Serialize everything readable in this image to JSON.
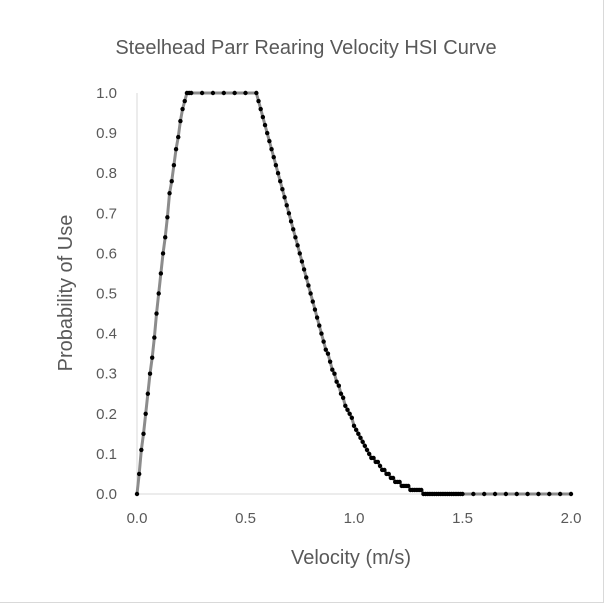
{
  "chart_data": {
    "type": "scatter",
    "title": "Steelhead Parr Rearing Velocity HSI Curve",
    "xlabel": "Velocity (m/s)",
    "ylabel": "Probability of Use",
    "xlim": [
      0.0,
      2.0
    ],
    "ylim": [
      0.0,
      1.0
    ],
    "x_ticks": [
      "0.0",
      "0.5",
      "1.0",
      "1.5",
      "2.0"
    ],
    "y_ticks": [
      "0.0",
      "0.1",
      "0.2",
      "0.3",
      "0.4",
      "0.5",
      "0.6",
      "0.7",
      "0.8",
      "0.9",
      "1.0"
    ],
    "grid": false,
    "legend": "none",
    "line_color": "#8c8c8c",
    "marker_color": "#000000",
    "series": [
      {
        "x": [
          0.0,
          0.01,
          0.02,
          0.03,
          0.04,
          0.05,
          0.06,
          0.07,
          0.08,
          0.09,
          0.1,
          0.11,
          0.12,
          0.13,
          0.14,
          0.15,
          0.16,
          0.17,
          0.18,
          0.19,
          0.2,
          0.21,
          0.22,
          0.23,
          0.24,
          0.25,
          0.3,
          0.35,
          0.4,
          0.45,
          0.5,
          0.55,
          0.56,
          0.57,
          0.58,
          0.59,
          0.6,
          0.61,
          0.62,
          0.63,
          0.64,
          0.65,
          0.66,
          0.67,
          0.68,
          0.69,
          0.7,
          0.71,
          0.72,
          0.73,
          0.74,
          0.75,
          0.76,
          0.77,
          0.78,
          0.79,
          0.8,
          0.81,
          0.82,
          0.83,
          0.84,
          0.85,
          0.86,
          0.87,
          0.88,
          0.89,
          0.9,
          0.91,
          0.92,
          0.93,
          0.94,
          0.95,
          0.96,
          0.97,
          0.98,
          0.99,
          1.0,
          1.01,
          1.02,
          1.03,
          1.04,
          1.05,
          1.06,
          1.07,
          1.08,
          1.09,
          1.1,
          1.11,
          1.12,
          1.13,
          1.14,
          1.15,
          1.16,
          1.17,
          1.18,
          1.19,
          1.2,
          1.21,
          1.22,
          1.23,
          1.24,
          1.25,
          1.26,
          1.27,
          1.28,
          1.29,
          1.3,
          1.31,
          1.32,
          1.33,
          1.34,
          1.35,
          1.36,
          1.37,
          1.38,
          1.39,
          1.4,
          1.41,
          1.42,
          1.43,
          1.44,
          1.45,
          1.46,
          1.47,
          1.48,
          1.49,
          1.5,
          1.55,
          1.6,
          1.65,
          1.7,
          1.75,
          1.8,
          1.85,
          1.9,
          1.95,
          2.0
        ],
        "y": [
          0.0,
          0.05,
          0.11,
          0.15,
          0.2,
          0.25,
          0.3,
          0.34,
          0.39,
          0.45,
          0.5,
          0.55,
          0.6,
          0.64,
          0.69,
          0.75,
          0.78,
          0.82,
          0.86,
          0.89,
          0.93,
          0.96,
          0.98,
          1.0,
          1.0,
          1.0,
          1.0,
          1.0,
          1.0,
          1.0,
          1.0,
          1.0,
          0.98,
          0.96,
          0.94,
          0.92,
          0.9,
          0.88,
          0.86,
          0.84,
          0.82,
          0.8,
          0.78,
          0.76,
          0.74,
          0.72,
          0.7,
          0.68,
          0.66,
          0.64,
          0.62,
          0.6,
          0.58,
          0.56,
          0.54,
          0.52,
          0.5,
          0.48,
          0.46,
          0.44,
          0.42,
          0.4,
          0.38,
          0.36,
          0.35,
          0.33,
          0.31,
          0.3,
          0.28,
          0.27,
          0.25,
          0.24,
          0.22,
          0.21,
          0.2,
          0.19,
          0.17,
          0.16,
          0.15,
          0.14,
          0.13,
          0.12,
          0.11,
          0.1,
          0.09,
          0.09,
          0.08,
          0.08,
          0.07,
          0.06,
          0.06,
          0.05,
          0.05,
          0.04,
          0.04,
          0.03,
          0.03,
          0.03,
          0.02,
          0.02,
          0.02,
          0.02,
          0.01,
          0.01,
          0.01,
          0.01,
          0.01,
          0.01,
          0.0,
          0.0,
          0.0,
          0.0,
          0.0,
          0.0,
          0.0,
          0.0,
          0.0,
          0.0,
          0.0,
          0.0,
          0.0,
          0.0,
          0.0,
          0.0,
          0.0,
          0.0,
          0.0,
          0.0,
          0.0,
          0.0,
          0.0,
          0.0,
          0.0,
          0.0,
          0.0,
          0.0,
          0.0
        ]
      }
    ]
  }
}
